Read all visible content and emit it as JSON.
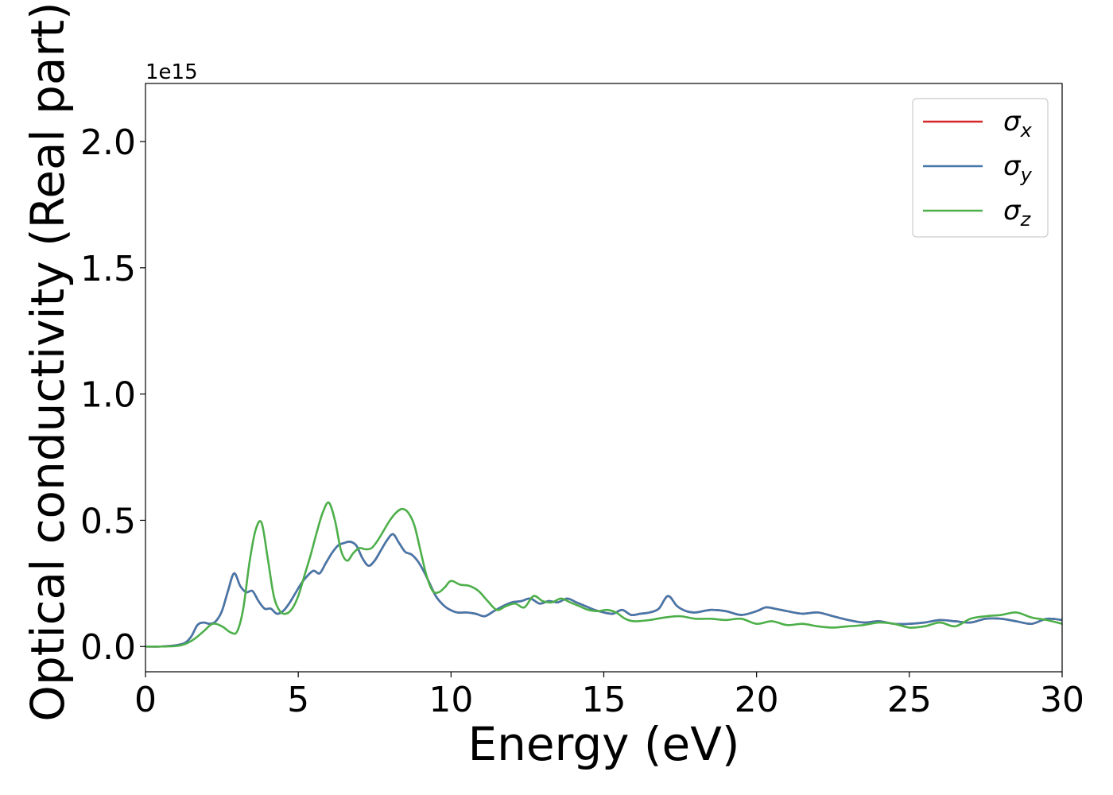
{
  "chart_data": {
    "type": "line",
    "title": "",
    "xlabel": "Energy (eV)",
    "ylabel": "Optical conductivity (Real part)",
    "offset_text": "1e15",
    "xlim": [
      0,
      30
    ],
    "ylim": [
      -0.1,
      2.23
    ],
    "xticks": [
      0,
      5,
      10,
      15,
      20,
      25,
      30
    ],
    "xtick_labels": [
      "0",
      "5",
      "10",
      "15",
      "20",
      "25",
      "30"
    ],
    "yticks": [
      0.0,
      0.5,
      1.0,
      1.5,
      2.0
    ],
    "ytick_labels": [
      "0.0",
      "0.5",
      "1.0",
      "1.5",
      "2.0"
    ],
    "grid": false,
    "legend": {
      "position": "top-right",
      "entries": [
        {
          "symbol": "σ",
          "sub": "x",
          "color": "#d62728"
        },
        {
          "symbol": "σ",
          "sub": "y",
          "color": "#4477aa"
        },
        {
          "symbol": "σ",
          "sub": "z",
          "color": "#4daf4a"
        }
      ]
    },
    "series": [
      {
        "color": "#d62728",
        "x": [
          0,
          0.5,
          1,
          1.3,
          1.5,
          1.7,
          1.9,
          2.1,
          2.3,
          2.5,
          2.7,
          2.9,
          3.1,
          3.3,
          3.5,
          3.7,
          3.9,
          4.1,
          4.3,
          4.5,
          4.7,
          4.9,
          5.1,
          5.3,
          5.5,
          5.7,
          5.9,
          6.1,
          6.3,
          6.5,
          6.7,
          6.9,
          7.1,
          7.3,
          7.5,
          7.7,
          7.9,
          8.1,
          8.3,
          8.5,
          8.7,
          8.9,
          9.1,
          9.3,
          9.5,
          9.7,
          9.9,
          10.2,
          10.5,
          10.8,
          11.1,
          11.4,
          11.7,
          12.0,
          12.3,
          12.6,
          12.9,
          13.2,
          13.5,
          13.8,
          14.1,
          14.4,
          14.7,
          15.0,
          15.3,
          15.6,
          15.9,
          16.2,
          16.5,
          16.8,
          17.1,
          17.4,
          17.7,
          18.0,
          18.5,
          19.0,
          19.5,
          20.0,
          20.3,
          20.6,
          21.0,
          21.5,
          22.0,
          22.5,
          23.0,
          23.5,
          24.0,
          24.5,
          25.0,
          25.5,
          26.0,
          26.5,
          27.0,
          27.5,
          28.0,
          28.5,
          29.0,
          29.5,
          30.0
        ],
        "y": [
          0,
          0,
          0.005,
          0.015,
          0.04,
          0.085,
          0.095,
          0.09,
          0.1,
          0.14,
          0.22,
          0.29,
          0.24,
          0.215,
          0.22,
          0.18,
          0.15,
          0.15,
          0.13,
          0.14,
          0.17,
          0.21,
          0.25,
          0.28,
          0.3,
          0.29,
          0.33,
          0.37,
          0.4,
          0.41,
          0.415,
          0.4,
          0.35,
          0.32,
          0.34,
          0.38,
          0.42,
          0.445,
          0.41,
          0.375,
          0.365,
          0.34,
          0.3,
          0.25,
          0.2,
          0.17,
          0.15,
          0.135,
          0.135,
          0.13,
          0.12,
          0.14,
          0.16,
          0.175,
          0.18,
          0.19,
          0.17,
          0.18,
          0.175,
          0.19,
          0.175,
          0.16,
          0.145,
          0.135,
          0.13,
          0.145,
          0.125,
          0.13,
          0.135,
          0.15,
          0.2,
          0.16,
          0.14,
          0.135,
          0.145,
          0.14,
          0.125,
          0.14,
          0.155,
          0.15,
          0.14,
          0.13,
          0.135,
          0.12,
          0.105,
          0.095,
          0.1,
          0.09,
          0.09,
          0.095,
          0.105,
          0.1,
          0.095,
          0.11,
          0.11,
          0.1,
          0.09,
          0.11,
          0.105
        ]
      },
      {
        "color": "#4477aa",
        "x": [
          0,
          0.5,
          1,
          1.3,
          1.5,
          1.7,
          1.9,
          2.1,
          2.3,
          2.5,
          2.7,
          2.9,
          3.1,
          3.3,
          3.5,
          3.7,
          3.9,
          4.1,
          4.3,
          4.5,
          4.7,
          4.9,
          5.1,
          5.3,
          5.5,
          5.7,
          5.9,
          6.1,
          6.3,
          6.5,
          6.7,
          6.9,
          7.1,
          7.3,
          7.5,
          7.7,
          7.9,
          8.1,
          8.3,
          8.5,
          8.7,
          8.9,
          9.1,
          9.3,
          9.5,
          9.7,
          9.9,
          10.2,
          10.5,
          10.8,
          11.1,
          11.4,
          11.7,
          12.0,
          12.3,
          12.6,
          12.9,
          13.2,
          13.5,
          13.8,
          14.1,
          14.4,
          14.7,
          15.0,
          15.3,
          15.6,
          15.9,
          16.2,
          16.5,
          16.8,
          17.1,
          17.4,
          17.7,
          18.0,
          18.5,
          19.0,
          19.5,
          20.0,
          20.3,
          20.6,
          21.0,
          21.5,
          22.0,
          22.5,
          23.0,
          23.5,
          24.0,
          24.5,
          25.0,
          25.5,
          26.0,
          26.5,
          27.0,
          27.5,
          28.0,
          28.5,
          29.0,
          29.5,
          30.0
        ],
        "y": [
          0,
          0,
          0.005,
          0.015,
          0.04,
          0.085,
          0.095,
          0.09,
          0.1,
          0.14,
          0.22,
          0.29,
          0.24,
          0.215,
          0.22,
          0.18,
          0.15,
          0.15,
          0.13,
          0.14,
          0.17,
          0.21,
          0.25,
          0.28,
          0.3,
          0.29,
          0.33,
          0.37,
          0.4,
          0.41,
          0.415,
          0.4,
          0.35,
          0.32,
          0.34,
          0.38,
          0.42,
          0.445,
          0.41,
          0.375,
          0.365,
          0.34,
          0.3,
          0.25,
          0.2,
          0.17,
          0.15,
          0.135,
          0.135,
          0.13,
          0.12,
          0.14,
          0.16,
          0.175,
          0.18,
          0.19,
          0.17,
          0.18,
          0.175,
          0.19,
          0.175,
          0.16,
          0.145,
          0.135,
          0.13,
          0.145,
          0.125,
          0.13,
          0.135,
          0.15,
          0.2,
          0.16,
          0.14,
          0.135,
          0.145,
          0.14,
          0.125,
          0.14,
          0.155,
          0.15,
          0.14,
          0.13,
          0.135,
          0.12,
          0.105,
          0.095,
          0.1,
          0.09,
          0.09,
          0.095,
          0.105,
          0.1,
          0.095,
          0.11,
          0.11,
          0.1,
          0.09,
          0.11,
          0.105
        ]
      },
      {
        "color": "#4daf4a",
        "x": [
          0,
          0.5,
          1,
          1.3,
          1.6,
          1.9,
          2.2,
          2.5,
          2.8,
          3.0,
          3.2,
          3.4,
          3.6,
          3.8,
          4.0,
          4.2,
          4.4,
          4.6,
          4.8,
          5.0,
          5.2,
          5.4,
          5.6,
          5.8,
          6.0,
          6.2,
          6.4,
          6.6,
          6.8,
          7.0,
          7.2,
          7.4,
          7.6,
          7.8,
          8.0,
          8.2,
          8.4,
          8.6,
          8.8,
          9.0,
          9.2,
          9.4,
          9.6,
          9.8,
          10.0,
          10.3,
          10.6,
          10.9,
          11.2,
          11.5,
          11.8,
          12.1,
          12.4,
          12.7,
          13.0,
          13.3,
          13.6,
          13.9,
          14.2,
          14.5,
          14.8,
          15.1,
          15.4,
          15.7,
          16.0,
          16.5,
          17.0,
          17.5,
          18.0,
          18.5,
          19.0,
          19.5,
          20.0,
          20.5,
          21.0,
          21.5,
          22.0,
          22.5,
          23.0,
          23.5,
          24.0,
          24.5,
          25.0,
          25.5,
          26.0,
          26.5,
          27.0,
          27.5,
          28.0,
          28.5,
          29.0,
          29.5,
          30.0
        ],
        "y": [
          0,
          0,
          0.002,
          0.01,
          0.03,
          0.06,
          0.09,
          0.08,
          0.055,
          0.06,
          0.15,
          0.33,
          0.46,
          0.49,
          0.35,
          0.2,
          0.14,
          0.13,
          0.15,
          0.2,
          0.28,
          0.36,
          0.45,
          0.53,
          0.57,
          0.5,
          0.38,
          0.34,
          0.37,
          0.39,
          0.385,
          0.39,
          0.42,
          0.46,
          0.5,
          0.53,
          0.545,
          0.53,
          0.48,
          0.38,
          0.28,
          0.22,
          0.215,
          0.235,
          0.26,
          0.245,
          0.24,
          0.22,
          0.18,
          0.145,
          0.16,
          0.17,
          0.155,
          0.2,
          0.18,
          0.175,
          0.19,
          0.175,
          0.16,
          0.145,
          0.14,
          0.145,
          0.135,
          0.11,
          0.1,
          0.105,
          0.115,
          0.12,
          0.11,
          0.11,
          0.105,
          0.11,
          0.09,
          0.1,
          0.085,
          0.09,
          0.08,
          0.075,
          0.08,
          0.085,
          0.095,
          0.09,
          0.075,
          0.08,
          0.095,
          0.08,
          0.11,
          0.12,
          0.125,
          0.135,
          0.115,
          0.105,
          0.09
        ]
      }
    ]
  }
}
